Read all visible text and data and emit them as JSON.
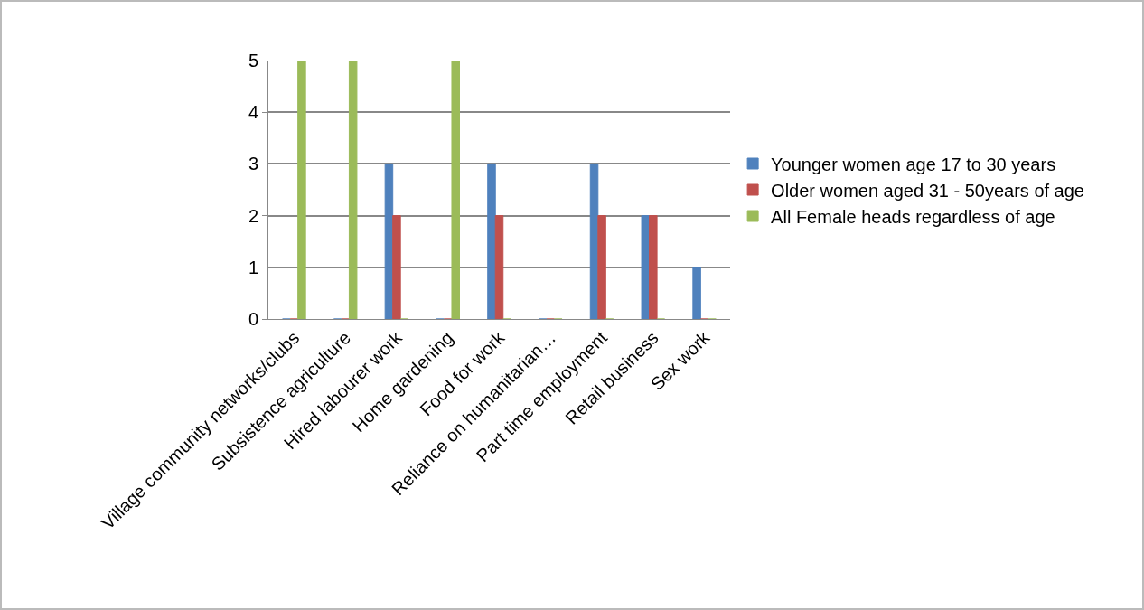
{
  "chart_data": {
    "type": "bar",
    "categories": [
      "Village community networks/clubs",
      "Subsistence agriculture",
      "Hired labourer work",
      "Home gardening",
      "Food for work",
      "Reliance on humanitarian…",
      "Part time employment",
      "Retail business",
      "Sex work"
    ],
    "series": [
      {
        "name": "Younger women age 17 to 30 years",
        "color": "#4f81bd",
        "values": [
          0,
          0,
          3,
          0,
          3,
          0,
          3,
          2,
          1
        ]
      },
      {
        "name": "Older women aged 31 - 50years of age",
        "color": "#c0504d",
        "values": [
          0,
          0,
          2,
          0,
          2,
          0,
          2,
          2,
          0
        ]
      },
      {
        "name": "All Female heads regardless of age",
        "color": "#9bbb59",
        "values": [
          5,
          5,
          0,
          5,
          0,
          0,
          0,
          0,
          0
        ]
      }
    ],
    "ylim": [
      0,
      5
    ],
    "yticks": [
      0,
      1,
      2,
      3,
      4,
      5
    ],
    "grid": "y",
    "legend": "right"
  }
}
